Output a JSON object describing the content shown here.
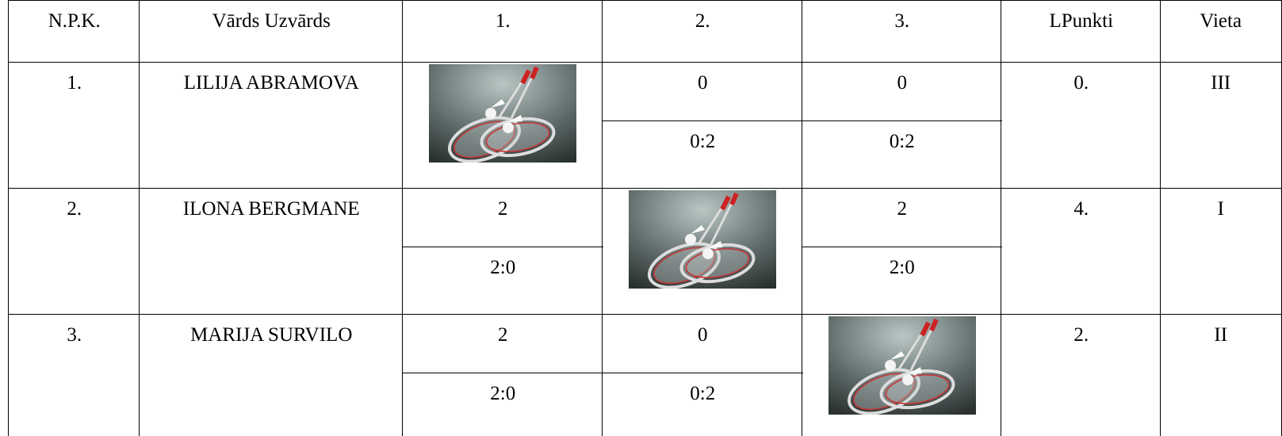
{
  "header": [
    "N.P.K.",
    "Vārds Uzvārds",
    "1.",
    "2.",
    "3.",
    "LPunkti",
    "Vieta"
  ],
  "rows": [
    {
      "npk": "1.",
      "name": "LILIJA ABRAMOVA",
      "results": [
        null,
        {
          "points": 0,
          "score": "0:2"
        },
        {
          "points": 0,
          "score": "0:2"
        }
      ],
      "lpunkti": "0.",
      "vieta": "III"
    },
    {
      "npk": "2.",
      "name": "ILONA BERGMANE",
      "results": [
        {
          "points": 2,
          "score": "2:0"
        },
        null,
        {
          "points": 2,
          "score": "2:0"
        }
      ],
      "lpunkti": "4.",
      "vieta": "I"
    },
    {
      "npk": "3.",
      "name": "MARIJA SURVILO",
      "results": [
        {
          "points": 2,
          "score": "2:0"
        },
        {
          "points": 0,
          "score": "0:2"
        },
        null
      ],
      "lpunkti": "2.",
      "vieta": "II"
    }
  ]
}
